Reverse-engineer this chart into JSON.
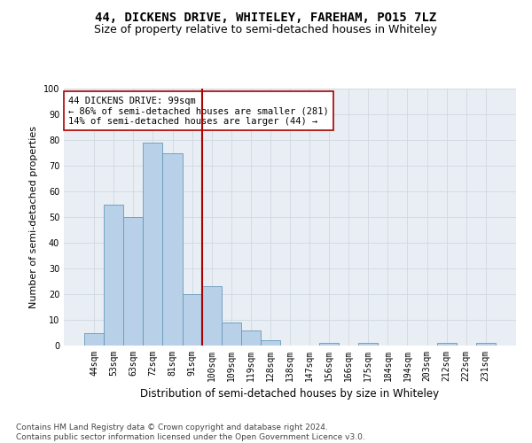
{
  "title": "44, DICKENS DRIVE, WHITELEY, FAREHAM, PO15 7LZ",
  "subtitle": "Size of property relative to semi-detached houses in Whiteley",
  "xlabel": "Distribution of semi-detached houses by size in Whiteley",
  "ylabel": "Number of semi-detached properties",
  "categories": [
    "44sqm",
    "53sqm",
    "63sqm",
    "72sqm",
    "81sqm",
    "91sqm",
    "100sqm",
    "109sqm",
    "119sqm",
    "128sqm",
    "138sqm",
    "147sqm",
    "156sqm",
    "166sqm",
    "175sqm",
    "184sqm",
    "194sqm",
    "203sqm",
    "212sqm",
    "222sqm",
    "231sqm"
  ],
  "values": [
    5,
    55,
    50,
    79,
    75,
    20,
    23,
    9,
    6,
    2,
    0,
    0,
    1,
    0,
    1,
    0,
    0,
    0,
    1,
    0,
    1
  ],
  "bar_color": "#b8d0e8",
  "bar_edge_color": "#6699bb",
  "vline_index": 6,
  "vline_color": "#aa0000",
  "annotation_text": "44 DICKENS DRIVE: 99sqm\n← 86% of semi-detached houses are smaller (281)\n14% of semi-detached houses are larger (44) →",
  "annotation_box_color": "#ffffff",
  "annotation_box_edge": "#aa0000",
  "ylim": [
    0,
    100
  ],
  "yticks": [
    0,
    10,
    20,
    30,
    40,
    50,
    60,
    70,
    80,
    90,
    100
  ],
  "grid_color": "#d0d8e0",
  "background_color": "#e8eef4",
  "footer_text": "Contains HM Land Registry data © Crown copyright and database right 2024.\nContains public sector information licensed under the Open Government Licence v3.0.",
  "title_fontsize": 10,
  "subtitle_fontsize": 9,
  "xlabel_fontsize": 8.5,
  "ylabel_fontsize": 8,
  "tick_fontsize": 7,
  "annotation_fontsize": 7.5,
  "footer_fontsize": 6.5
}
